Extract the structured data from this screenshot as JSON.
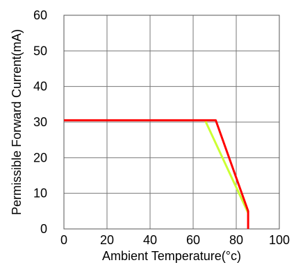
{
  "chart_data": {
    "type": "line",
    "title": "",
    "xlabel": "Ambient Temperature(°c)",
    "ylabel": "Permissible Forward Current(mA)",
    "xlim": [
      0,
      100
    ],
    "ylim": [
      0,
      60
    ],
    "x_ticks": [
      "0",
      "20",
      "40",
      "60",
      "80",
      "100"
    ],
    "y_ticks": [
      "0",
      "10",
      "20",
      "30",
      "40",
      "50",
      "60"
    ],
    "grid": true,
    "series": [
      {
        "color": "#ff0000",
        "points": [
          [
            0,
            30.5
          ],
          [
            70.5,
            30.5
          ],
          [
            85.5,
            5
          ],
          [
            85.5,
            0
          ]
        ]
      },
      {
        "color": "#ccff33",
        "points": [
          [
            65.5,
            30.5
          ],
          [
            85.5,
            4.5
          ]
        ]
      }
    ]
  }
}
